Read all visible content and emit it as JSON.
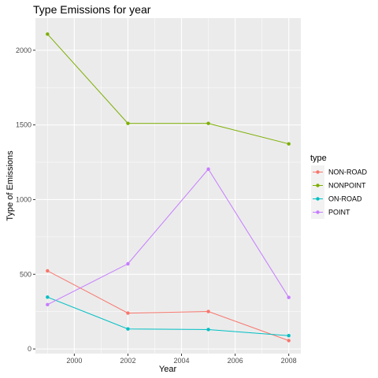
{
  "chart_data": {
    "type": "line",
    "title": "Type Emissions for year",
    "xlabel": "Year",
    "ylabel": "Type of Emissions",
    "x": [
      1999,
      2002,
      2005,
      2008
    ],
    "xlim": [
      1998.55,
      2008.45
    ],
    "ylim": [
      -31,
      2215
    ],
    "xticks": [
      2000,
      2002,
      2004,
      2006,
      2008
    ],
    "yticks": [
      0,
      500,
      1000,
      1500,
      2000
    ],
    "grid": true,
    "legend": {
      "title": "type",
      "position": "right"
    },
    "series": [
      {
        "name": "NON-ROAD",
        "color": "#F8766D",
        "values": [
          523,
          240,
          251,
          56
        ]
      },
      {
        "name": "NONPOINT",
        "color": "#7CAE00",
        "values": [
          2108,
          1510,
          1510,
          1373
        ]
      },
      {
        "name": "ON-ROAD",
        "color": "#00BFC4",
        "values": [
          347,
          134,
          130,
          89
        ]
      },
      {
        "name": "POINT",
        "color": "#C77CFF",
        "values": [
          297,
          570,
          1204,
          345
        ]
      }
    ]
  }
}
